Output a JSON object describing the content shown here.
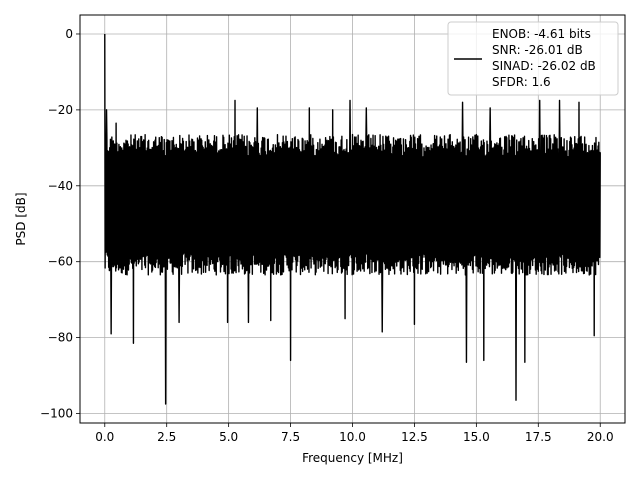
{
  "chart_data": {
    "type": "line",
    "xlabel": "Frequency [MHz]",
    "ylabel": "PSD [dB]",
    "xlim": [
      -1.0,
      21.0
    ],
    "ylim": [
      -102.5,
      5.0
    ],
    "xticks": [
      0.0,
      2.5,
      5.0,
      7.5,
      10.0,
      12.5,
      15.0,
      17.5,
      20.0
    ],
    "xtick_labels": [
      "0.0",
      "2.5",
      "5.0",
      "7.5",
      "10.0",
      "12.5",
      "15.0",
      "17.5",
      "20.0"
    ],
    "yticks": [
      0,
      -20,
      -40,
      -60,
      -80,
      -100
    ],
    "ytick_labels": [
      "0",
      "−20",
      "−40",
      "−60",
      "−80",
      "−100"
    ],
    "grid": true,
    "legend_position": "upper right",
    "series": [
      {
        "color": "#000000",
        "legend_lines": [
          "ENOB: -4.61 bits",
          "SNR: -26.01 dB",
          "SINAD: -26.02 dB",
          "SFDR: 1.6"
        ],
        "description": "dense noise floor roughly between -65 and -25 dB across 0-20 MHz",
        "noise_band": {
          "x_start": 0.0,
          "x_end": 20.0,
          "upper": -26.5,
          "lower": -63.5
        },
        "peaks": [
          {
            "x": 0.0,
            "y": 0.0
          },
          {
            "x": 0.07,
            "y": -20.0
          },
          {
            "x": 0.45,
            "y": -23.5
          },
          {
            "x": 5.25,
            "y": -17.5
          },
          {
            "x": 6.15,
            "y": -19.5
          },
          {
            "x": 7.5,
            "y": -18.0
          },
          {
            "x": 8.25,
            "y": -19.5
          },
          {
            "x": 9.2,
            "y": -20.0
          },
          {
            "x": 9.9,
            "y": -17.5
          },
          {
            "x": 10.55,
            "y": -19.5
          },
          {
            "x": 11.2,
            "y": -18.5
          },
          {
            "x": 12.5,
            "y": -17.5
          },
          {
            "x": 14.45,
            "y": -18.0
          },
          {
            "x": 15.55,
            "y": -19.5
          },
          {
            "x": 17.55,
            "y": -17.5
          },
          {
            "x": 18.35,
            "y": -17.5
          },
          {
            "x": 19.15,
            "y": -18.0
          }
        ],
        "dips": [
          {
            "x": 0.25,
            "y": -79.0
          },
          {
            "x": 1.15,
            "y": -81.5
          },
          {
            "x": 2.45,
            "y": -97.5
          },
          {
            "x": 3.0,
            "y": -76.0
          },
          {
            "x": 4.95,
            "y": -76.0
          },
          {
            "x": 5.8,
            "y": -76.0
          },
          {
            "x": 6.7,
            "y": -75.5
          },
          {
            "x": 7.5,
            "y": -86.0
          },
          {
            "x": 9.7,
            "y": -75.0
          },
          {
            "x": 11.2,
            "y": -78.5
          },
          {
            "x": 12.5,
            "y": -76.5
          },
          {
            "x": 14.6,
            "y": -86.5
          },
          {
            "x": 15.3,
            "y": -86.0
          },
          {
            "x": 16.6,
            "y": -96.5
          },
          {
            "x": 16.95,
            "y": -86.5
          },
          {
            "x": 19.75,
            "y": -79.5
          }
        ]
      }
    ]
  }
}
